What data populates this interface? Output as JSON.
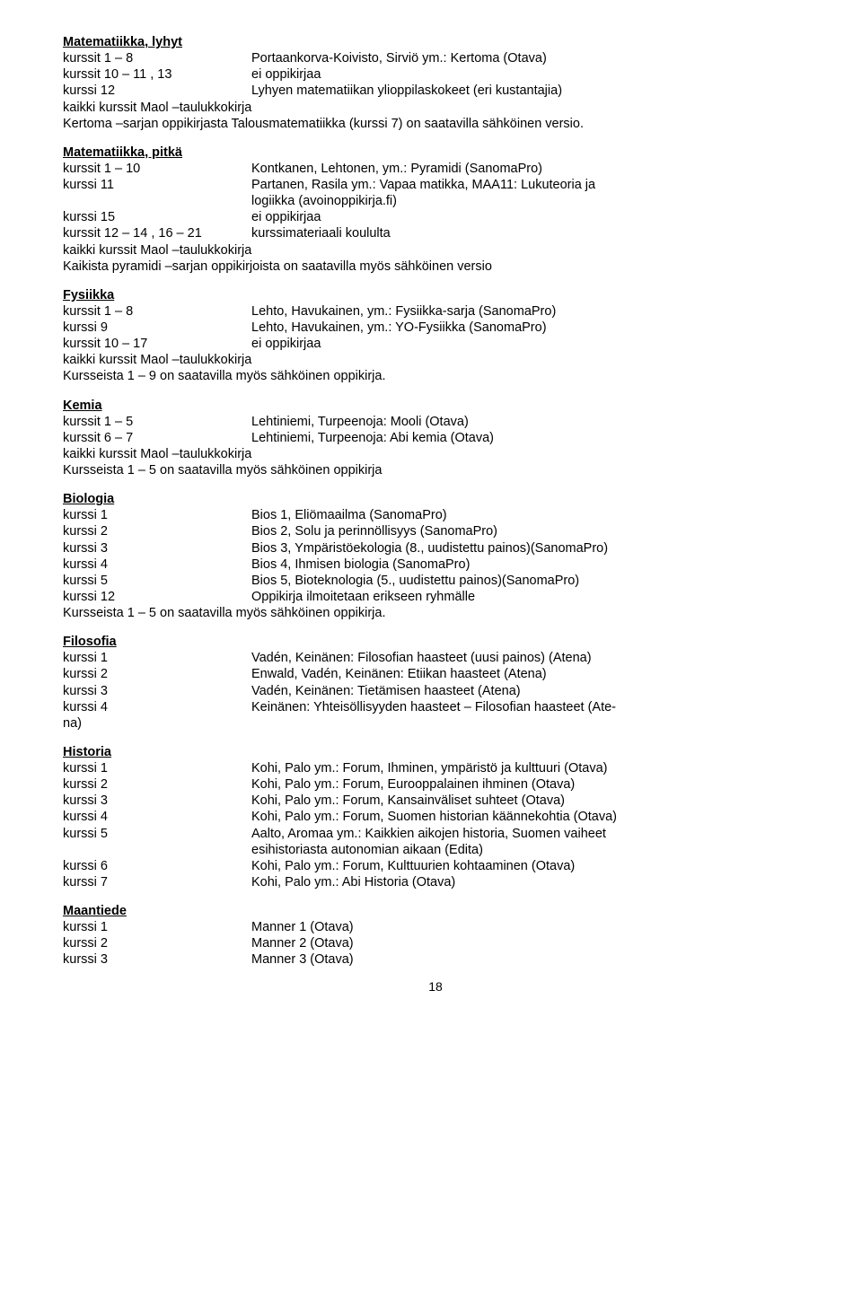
{
  "sections": {
    "math_short": {
      "title": "Matematiikka,  lyhyt",
      "rows": [
        {
          "l": "kurssit 1 – 8",
          "r": "Portaankorva-Koivisto, Sirviö ym.: Kertoma (Otava)"
        },
        {
          "l": "kurssit 10 – 11 , 13",
          "r": "ei oppikirjaa"
        },
        {
          "l": "kurssi 12",
          "r": "Lyhyen matematiikan ylioppilaskokeet (eri kustantajia)"
        }
      ],
      "free": [
        "kaikki kurssit Maol –taulukkokirja",
        "Kertoma –sarjan oppikirjasta Talousmatematiikka (kurssi 7) on saatavilla sähköinen versio."
      ]
    },
    "math_long": {
      "title": "Matematiikka, pitkä",
      "rows": [
        {
          "l": "kurssit 1 – 10",
          "r": "Kontkanen, Lehtonen, ym.: Pyramidi (SanomaPro)"
        },
        {
          "l": "kurssi 11",
          "r": "Partanen, Rasila ym.: Vapaa matikka, MAA11: Lukuteoria ja"
        }
      ],
      "line2_right": "logiikka (avoinoppikirja.fi)",
      "rows2": [
        {
          "l": "kurssi 15",
          "r": "ei oppikirjaa"
        },
        {
          "l": "kurssit 12 – 14 , 16 – 21",
          "r": "kurssimateriaali koululta"
        }
      ],
      "free": [
        "kaikki kurssit Maol –taulukkokirja",
        "Kaikista pyramidi –sarjan oppikirjoista on saatavilla myös sähköinen versio"
      ]
    },
    "physics": {
      "title": "Fysiikka",
      "rows": [
        {
          "l": "kurssit 1 – 8",
          "r": "Lehto, Havukainen, ym.: Fysiikka-sarja (SanomaPro)"
        },
        {
          "l": "kurssi 9",
          "r": "Lehto, Havukainen, ym.: YO-Fysiikka (SanomaPro)"
        },
        {
          "l": "kurssit 10 – 17",
          "r": "ei oppikirjaa"
        }
      ],
      "free": [
        "kaikki kurssit Maol –taulukkokirja",
        "Kursseista 1 – 9 on saatavilla myös sähköinen oppikirja."
      ]
    },
    "chemistry": {
      "title": "Kemia",
      "rows": [
        {
          "l": "kurssit 1 – 5",
          "r": "Lehtiniemi, Turpeenoja: Mooli (Otava)"
        },
        {
          "l": "kurssit 6 – 7",
          "r": "Lehtiniemi, Turpeenoja: Abi kemia (Otava)"
        }
      ],
      "free": [
        "kaikki kurssit Maol –taulukkokirja",
        "Kursseista 1 – 5 on saatavilla myös sähköinen oppikirja"
      ]
    },
    "biology": {
      "title": "Biologia",
      "rows": [
        {
          "l": "kurssi 1",
          "r": "Bios 1, Eliömaailma (SanomaPro)"
        },
        {
          "l": "kurssi 2",
          "r": "Bios 2, Solu ja perinnöllisyys (SanomaPro)"
        },
        {
          "l": "kurssi 3",
          "r": "Bios 3, Ympäristöekologia (8., uudistettu painos)(SanomaPro)"
        },
        {
          "l": "kurssi 4",
          "r": "Bios 4, Ihmisen biologia (SanomaPro)"
        },
        {
          "l": "kurssi 5",
          "r": "Bios 5, Bioteknologia (5., uudistettu painos)(SanomaPro)"
        },
        {
          "l": "kurssi 12",
          "r": "Oppikirja ilmoitetaan erikseen ryhmälle"
        }
      ],
      "free": [
        "Kursseista 1 – 5 on saatavilla myös sähköinen oppikirja."
      ]
    },
    "philosophy": {
      "title": "Filosofia",
      "rows": [
        {
          "l": "kurssi 1",
          "r": "Vadén, Keinänen: Filosofian haasteet (uusi painos) (Atena)"
        },
        {
          "l": "kurssi 2",
          "r": "Enwald, Vadén, Keinänen: Etiikan haasteet (Atena)"
        },
        {
          "l": "kurssi 3",
          "r": "Vadén, Keinänen: Tietämisen haasteet (Atena)"
        },
        {
          "l": "kurssi 4",
          "r": "Keinänen: Yhteisöllisyyden haasteet – Filosofian haasteet (Ate-"
        }
      ],
      "free": [
        "na)"
      ]
    },
    "history": {
      "title": "Historia",
      "rows": [
        {
          "l": "kurssi 1",
          "r": "Kohi, Palo ym.: Forum, Ihminen, ympäristö ja kulttuuri (Otava)"
        },
        {
          "l": "kurssi 2",
          "r": "Kohi, Palo ym.: Forum, Eurooppalainen ihminen (Otava)"
        },
        {
          "l": "kurssi 3",
          "r": "Kohi, Palo ym.: Forum, Kansainväliset suhteet (Otava)"
        },
        {
          "l": "kurssi 4",
          "r": "Kohi, Palo ym.: Forum, Suomen historian käännekohtia (Otava)"
        },
        {
          "l": "kurssi 5",
          "r": "Aalto, Aromaa ym.: Kaikkien aikojen historia, Suomen vaiheet"
        }
      ],
      "line5_right": "esihistoriasta autonomian aikaan (Edita)",
      "rows2": [
        {
          "l": "kurssi 6",
          "r": "Kohi, Palo ym.: Forum, Kulttuurien kohtaaminen (Otava)"
        },
        {
          "l": "kurssi 7",
          "r": "Kohi, Palo ym.: Abi Historia (Otava)"
        }
      ]
    },
    "geography": {
      "title": "Maantiede",
      "rows": [
        {
          "l": "kurssi 1",
          "r": "Manner 1 (Otava)"
        },
        {
          "l": "kurssi 2",
          "r": "Manner 2 (Otava)"
        },
        {
          "l": "kurssi 3",
          "r": "Manner 3 (Otava)"
        }
      ]
    }
  },
  "page_number": "18"
}
